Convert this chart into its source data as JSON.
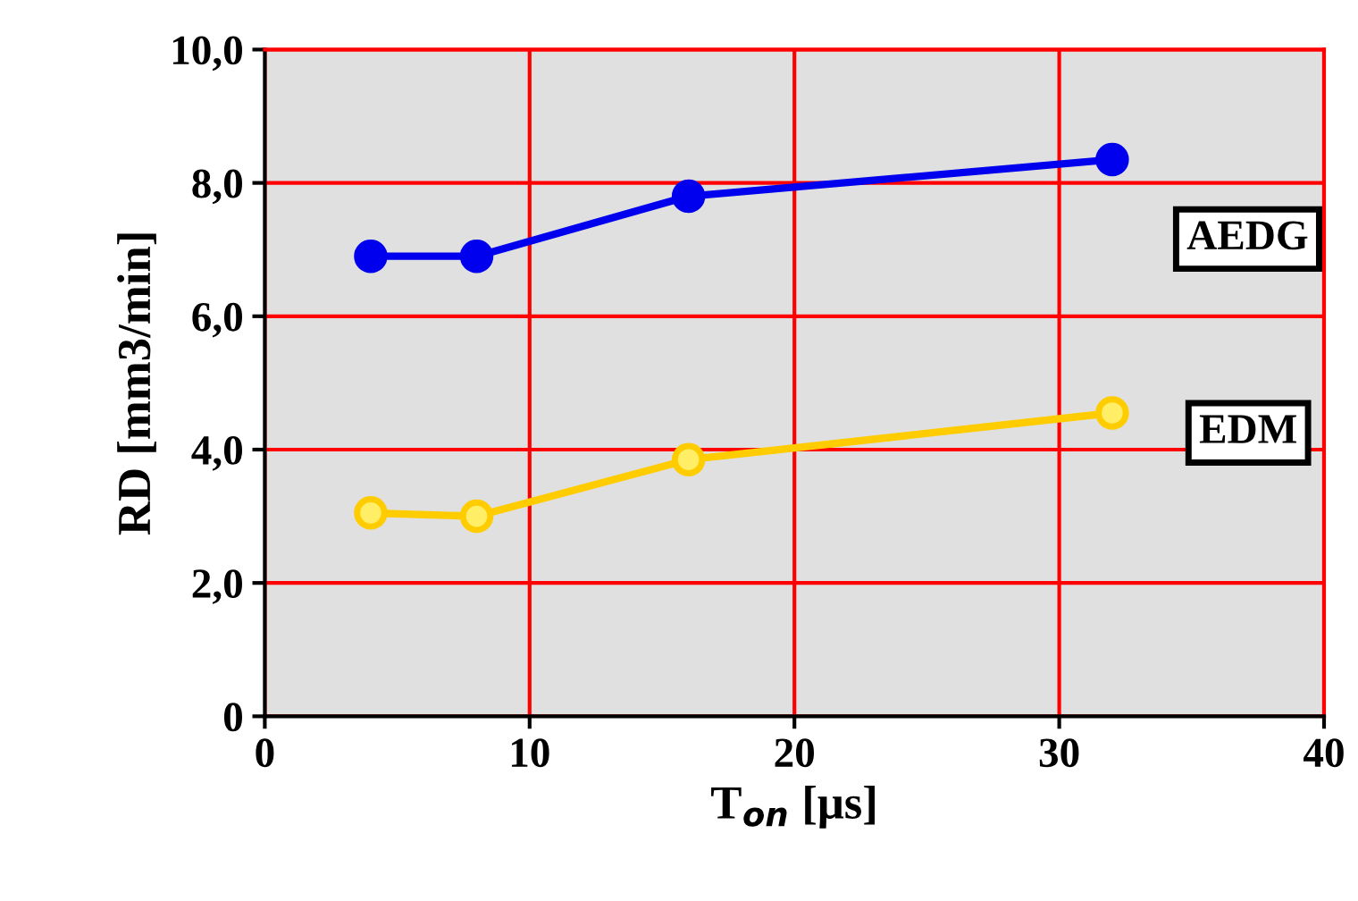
{
  "chart_data": {
    "type": "line",
    "xlabel": "T$_{on}$ [μs]",
    "ylabel": "RD [mm3/min]",
    "series": [
      {
        "name": "AEDG",
        "color": "#0000ee",
        "x": [
          4,
          8,
          16,
          32
        ],
        "values": [
          6.9,
          6.9,
          7.8,
          8.35
        ]
      },
      {
        "name": "EDM",
        "color": "#ffcc00",
        "x": [
          4,
          8,
          16,
          32
        ],
        "values": [
          3.05,
          3.0,
          3.85,
          4.55
        ]
      }
    ],
    "xlim": [
      0,
      40
    ],
    "xticks": [
      0,
      10,
      20,
      30,
      40
    ],
    "ylim": [
      0,
      10
    ],
    "yticks": [
      {
        "value": 0,
        "label": "0"
      },
      {
        "value": 2,
        "label": "2,0"
      },
      {
        "value": 4,
        "label": "4,0"
      },
      {
        "value": 6,
        "label": "6,0"
      },
      {
        "value": 8,
        "label": "8,0"
      },
      {
        "value": 10,
        "label": "10,0"
      }
    ],
    "grid": true,
    "marker": "circle",
    "line_style": "solid",
    "legend": false
  }
}
